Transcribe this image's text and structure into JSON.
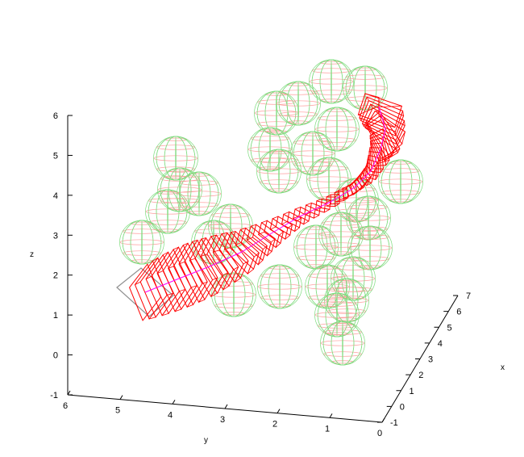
{
  "chart_data": {
    "type": "3d-wireframe",
    "title": "",
    "xlabel": "x",
    "ylabel": "y",
    "zlabel": "z",
    "xlim": [
      -1,
      7
    ],
    "ylim": [
      0,
      6
    ],
    "zlim": [
      -1,
      6
    ],
    "x_ticks": [
      "-1",
      "0",
      "1",
      "2",
      "3",
      "4",
      "5",
      "6",
      "7"
    ],
    "y_ticks": [
      "6",
      "5",
      "4",
      "3",
      "2",
      "1",
      "0"
    ],
    "z_ticks": [
      "-1",
      "0",
      "1",
      "2",
      "3",
      "4",
      "5",
      "6"
    ],
    "colors": {
      "tube": "#ff0000",
      "sphere_latitude": "#ff9c9c",
      "sphere_longitude": "#7fdc7f",
      "centerline": "#ff00ff",
      "base_frame": "#909090"
    }
  }
}
